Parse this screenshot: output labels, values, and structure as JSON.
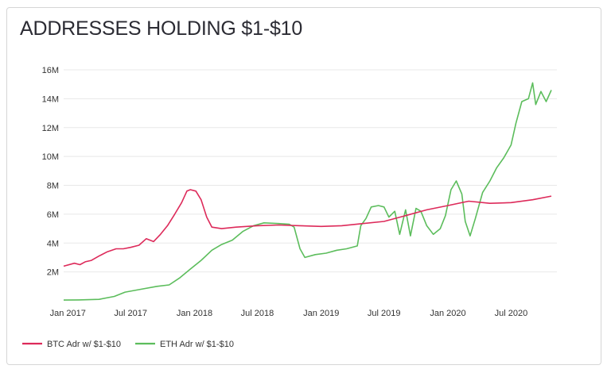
{
  "title": "ADDRESSES HOLDING $1-$10",
  "colors": {
    "btc": "#dd2a5a",
    "eth": "#5cbd5c",
    "grid": "#e8e8e8"
  },
  "chart_data": {
    "type": "line",
    "title": "ADDRESSES HOLDING $1-$10",
    "xlabel": "",
    "ylabel": "",
    "x_range": [
      "2016-12-20",
      "2020-11-10"
    ],
    "ylim": [
      0,
      16000000
    ],
    "y_ticks": [
      {
        "value": 2000000,
        "label": "2M"
      },
      {
        "value": 4000000,
        "label": "4M"
      },
      {
        "value": 6000000,
        "label": "6M"
      },
      {
        "value": 8000000,
        "label": "8M"
      },
      {
        "value": 10000000,
        "label": "10M"
      },
      {
        "value": 12000000,
        "label": "12M"
      },
      {
        "value": 14000000,
        "label": "14M"
      },
      {
        "value": 16000000,
        "label": "16M"
      }
    ],
    "x_ticks": [
      {
        "value": "2017-01-01",
        "label": "Jan 2017"
      },
      {
        "value": "2017-07-01",
        "label": "Jul 2017"
      },
      {
        "value": "2018-01-01",
        "label": "Jan 2018"
      },
      {
        "value": "2018-07-01",
        "label": "Jul 2018"
      },
      {
        "value": "2019-01-01",
        "label": "Jan 2019"
      },
      {
        "value": "2019-07-01",
        "label": "Jul 2019"
      },
      {
        "value": "2020-01-01",
        "label": "Jan 2020"
      },
      {
        "value": "2020-07-01",
        "label": "Jul 2020"
      }
    ],
    "grid": true,
    "legend": "bottom-left",
    "series": [
      {
        "name": "BTC Adr w/ $1-$10",
        "color": "#dd2a5a",
        "points": [
          [
            "2016-12-20",
            2400000
          ],
          [
            "2017-01-20",
            2600000
          ],
          [
            "2017-02-05",
            2500000
          ],
          [
            "2017-02-20",
            2700000
          ],
          [
            "2017-03-10",
            2800000
          ],
          [
            "2017-04-01",
            3100000
          ],
          [
            "2017-04-25",
            3400000
          ],
          [
            "2017-05-20",
            3600000
          ],
          [
            "2017-06-10",
            3600000
          ],
          [
            "2017-07-01",
            3700000
          ],
          [
            "2017-07-25",
            3850000
          ],
          [
            "2017-08-15",
            4300000
          ],
          [
            "2017-09-05",
            4100000
          ],
          [
            "2017-09-25",
            4600000
          ],
          [
            "2017-10-15",
            5200000
          ],
          [
            "2017-11-05",
            6000000
          ],
          [
            "2017-11-25",
            6800000
          ],
          [
            "2017-12-10",
            7600000
          ],
          [
            "2017-12-20",
            7700000
          ],
          [
            "2018-01-05",
            7600000
          ],
          [
            "2018-01-20",
            7000000
          ],
          [
            "2018-02-05",
            5800000
          ],
          [
            "2018-02-20",
            5100000
          ],
          [
            "2018-03-20",
            5000000
          ],
          [
            "2018-05-01",
            5100000
          ],
          [
            "2018-07-01",
            5200000
          ],
          [
            "2018-09-01",
            5250000
          ],
          [
            "2018-11-01",
            5200000
          ],
          [
            "2019-01-01",
            5150000
          ],
          [
            "2019-03-01",
            5200000
          ],
          [
            "2019-05-01",
            5350000
          ],
          [
            "2019-07-01",
            5500000
          ],
          [
            "2019-09-01",
            5900000
          ],
          [
            "2019-11-01",
            6300000
          ],
          [
            "2020-01-01",
            6600000
          ],
          [
            "2020-03-01",
            6900000
          ],
          [
            "2020-05-01",
            6750000
          ],
          [
            "2020-07-01",
            6800000
          ],
          [
            "2020-09-01",
            7000000
          ],
          [
            "2020-10-25",
            7250000
          ]
        ]
      },
      {
        "name": "ETH Adr w/ $1-$10",
        "color": "#5cbd5c",
        "points": [
          [
            "2016-12-20",
            50000
          ],
          [
            "2017-02-01",
            60000
          ],
          [
            "2017-04-01",
            100000
          ],
          [
            "2017-05-15",
            300000
          ],
          [
            "2017-06-15",
            600000
          ],
          [
            "2017-08-01",
            800000
          ],
          [
            "2017-09-15",
            1000000
          ],
          [
            "2017-10-20",
            1100000
          ],
          [
            "2017-11-20",
            1600000
          ],
          [
            "2017-12-20",
            2200000
          ],
          [
            "2018-01-20",
            2800000
          ],
          [
            "2018-02-20",
            3500000
          ],
          [
            "2018-03-20",
            3900000
          ],
          [
            "2018-04-20",
            4200000
          ],
          [
            "2018-05-20",
            4800000
          ],
          [
            "2018-06-20",
            5200000
          ],
          [
            "2018-07-20",
            5400000
          ],
          [
            "2018-09-01",
            5350000
          ],
          [
            "2018-10-01",
            5300000
          ],
          [
            "2018-10-15",
            5100000
          ],
          [
            "2018-11-01",
            3600000
          ],
          [
            "2018-11-15",
            3000000
          ],
          [
            "2018-12-15",
            3200000
          ],
          [
            "2019-01-15",
            3300000
          ],
          [
            "2019-02-15",
            3500000
          ],
          [
            "2019-03-15",
            3600000
          ],
          [
            "2019-04-15",
            3800000
          ],
          [
            "2019-04-25",
            5200000
          ],
          [
            "2019-05-10",
            5700000
          ],
          [
            "2019-05-25",
            6500000
          ],
          [
            "2019-06-15",
            6600000
          ],
          [
            "2019-07-01",
            6500000
          ],
          [
            "2019-07-15",
            5800000
          ],
          [
            "2019-08-01",
            6200000
          ],
          [
            "2019-08-15",
            4600000
          ],
          [
            "2019-09-01",
            6300000
          ],
          [
            "2019-09-15",
            4500000
          ],
          [
            "2019-10-01",
            6400000
          ],
          [
            "2019-10-15",
            6200000
          ],
          [
            "2019-11-01",
            5200000
          ],
          [
            "2019-11-20",
            4600000
          ],
          [
            "2019-12-10",
            5000000
          ],
          [
            "2019-12-25",
            5900000
          ],
          [
            "2020-01-10",
            7700000
          ],
          [
            "2020-01-25",
            8300000
          ],
          [
            "2020-02-10",
            7400000
          ],
          [
            "2020-02-20",
            5500000
          ],
          [
            "2020-03-05",
            4500000
          ],
          [
            "2020-03-20",
            5700000
          ],
          [
            "2020-04-10",
            7500000
          ],
          [
            "2020-05-01",
            8300000
          ],
          [
            "2020-05-20",
            9200000
          ],
          [
            "2020-06-10",
            9900000
          ],
          [
            "2020-07-01",
            10800000
          ],
          [
            "2020-07-15",
            12300000
          ],
          [
            "2020-08-01",
            13800000
          ],
          [
            "2020-08-20",
            14000000
          ],
          [
            "2020-09-01",
            15100000
          ],
          [
            "2020-09-10",
            13600000
          ],
          [
            "2020-09-25",
            14500000
          ],
          [
            "2020-10-10",
            13800000
          ],
          [
            "2020-10-25",
            14600000
          ]
        ]
      }
    ]
  }
}
